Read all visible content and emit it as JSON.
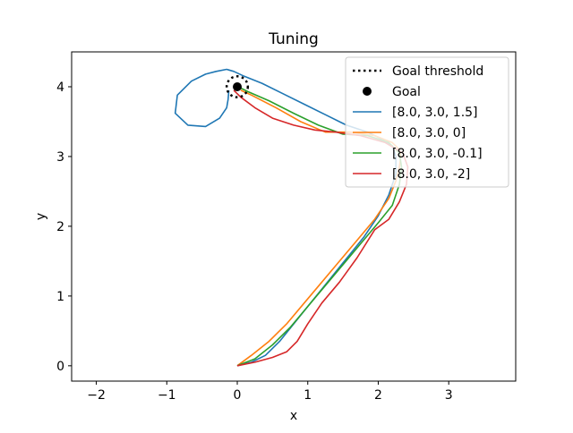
{
  "chart_data": {
    "type": "line",
    "title": "Tuning",
    "xlabel": "x",
    "ylabel": "y",
    "xlim": [
      -2.35,
      3.95
    ],
    "ylim": [
      -0.22,
      4.5
    ],
    "xticks": [
      -2,
      -1,
      0,
      1,
      2,
      3
    ],
    "yticks": [
      0,
      1,
      2,
      3,
      4
    ],
    "xtick_labels": [
      "−2",
      "−1",
      "0",
      "1",
      "2",
      "3"
    ],
    "ytick_labels": [
      "0",
      "1",
      "2",
      "3",
      "4"
    ],
    "grid": false,
    "legend_position": "top-right",
    "goal": {
      "label": "Goal",
      "x": 0.0,
      "y": 4.0,
      "color": "#000000"
    },
    "goal_threshold": {
      "label": "Goal threshold",
      "center": [
        0.0,
        4.0
      ],
      "radius": 0.15,
      "color": "#000000"
    },
    "series": [
      {
        "name": "[8.0, 3.0, 1.5]",
        "color": "#1f77b4",
        "x": [
          0.0,
          0.2,
          0.4,
          0.6,
          0.8,
          1.0,
          1.2,
          1.4,
          1.6,
          1.8,
          2.0,
          2.15,
          2.25,
          2.25,
          2.2,
          2.05,
          1.85,
          1.55,
          1.25,
          0.95,
          0.65,
          0.35,
          0.1,
          -0.05,
          -0.15,
          -0.3,
          -0.45,
          -0.65,
          -0.85,
          -0.88,
          -0.7,
          -0.45,
          -0.25,
          -0.15,
          -0.13,
          -0.12
        ],
        "y": [
          0.0,
          0.05,
          0.15,
          0.35,
          0.6,
          0.85,
          1.1,
          1.35,
          1.6,
          1.85,
          2.15,
          2.45,
          2.75,
          3.0,
          3.15,
          3.25,
          3.35,
          3.45,
          3.6,
          3.75,
          3.9,
          4.05,
          4.15,
          4.22,
          4.25,
          4.22,
          4.18,
          4.08,
          3.88,
          3.62,
          3.45,
          3.43,
          3.55,
          3.7,
          3.82,
          3.95
        ]
      },
      {
        "name": "[8.0, 3.0, 0]",
        "color": "#ff7f0e",
        "x": [
          0.0,
          0.2,
          0.45,
          0.7,
          0.95,
          1.2,
          1.45,
          1.7,
          1.95,
          2.15,
          2.25,
          2.3,
          2.32,
          2.3,
          2.2,
          1.95,
          1.6,
          1.25,
          0.9,
          0.55,
          0.2,
          0.05
        ],
        "y": [
          0.0,
          0.15,
          0.35,
          0.6,
          0.9,
          1.2,
          1.5,
          1.8,
          2.1,
          2.4,
          2.65,
          2.85,
          3.0,
          3.1,
          3.2,
          3.3,
          3.35,
          3.35,
          3.5,
          3.7,
          3.88,
          3.95
        ]
      },
      {
        "name": "[8.0, 3.0, -0.1]",
        "color": "#2ca02c",
        "x": [
          0.0,
          0.25,
          0.5,
          0.75,
          1.0,
          1.25,
          1.5,
          1.75,
          2.0,
          2.2,
          2.3,
          2.33,
          2.3,
          2.15,
          1.85,
          1.5,
          1.15,
          0.8,
          0.45,
          0.15,
          0.05
        ],
        "y": [
          0.0,
          0.1,
          0.3,
          0.55,
          0.85,
          1.15,
          1.45,
          1.75,
          2.05,
          2.3,
          2.6,
          2.85,
          3.05,
          3.2,
          3.3,
          3.32,
          3.45,
          3.62,
          3.8,
          3.93,
          3.98
        ]
      },
      {
        "name": "[8.0, 3.0, -2]",
        "color": "#d62728",
        "x": [
          0.0,
          0.25,
          0.5,
          0.7,
          0.85,
          1.0,
          1.2,
          1.45,
          1.7,
          1.95,
          2.15,
          2.3,
          2.4,
          2.42,
          2.35,
          2.1,
          1.75,
          1.4,
          1.1,
          0.8,
          0.5,
          0.25,
          0.05,
          -0.05
        ],
        "y": [
          0.0,
          0.05,
          0.12,
          0.2,
          0.35,
          0.6,
          0.9,
          1.2,
          1.55,
          1.95,
          2.1,
          2.35,
          2.6,
          2.85,
          3.05,
          3.2,
          3.3,
          3.35,
          3.38,
          3.45,
          3.55,
          3.7,
          3.85,
          3.95
        ]
      }
    ]
  }
}
